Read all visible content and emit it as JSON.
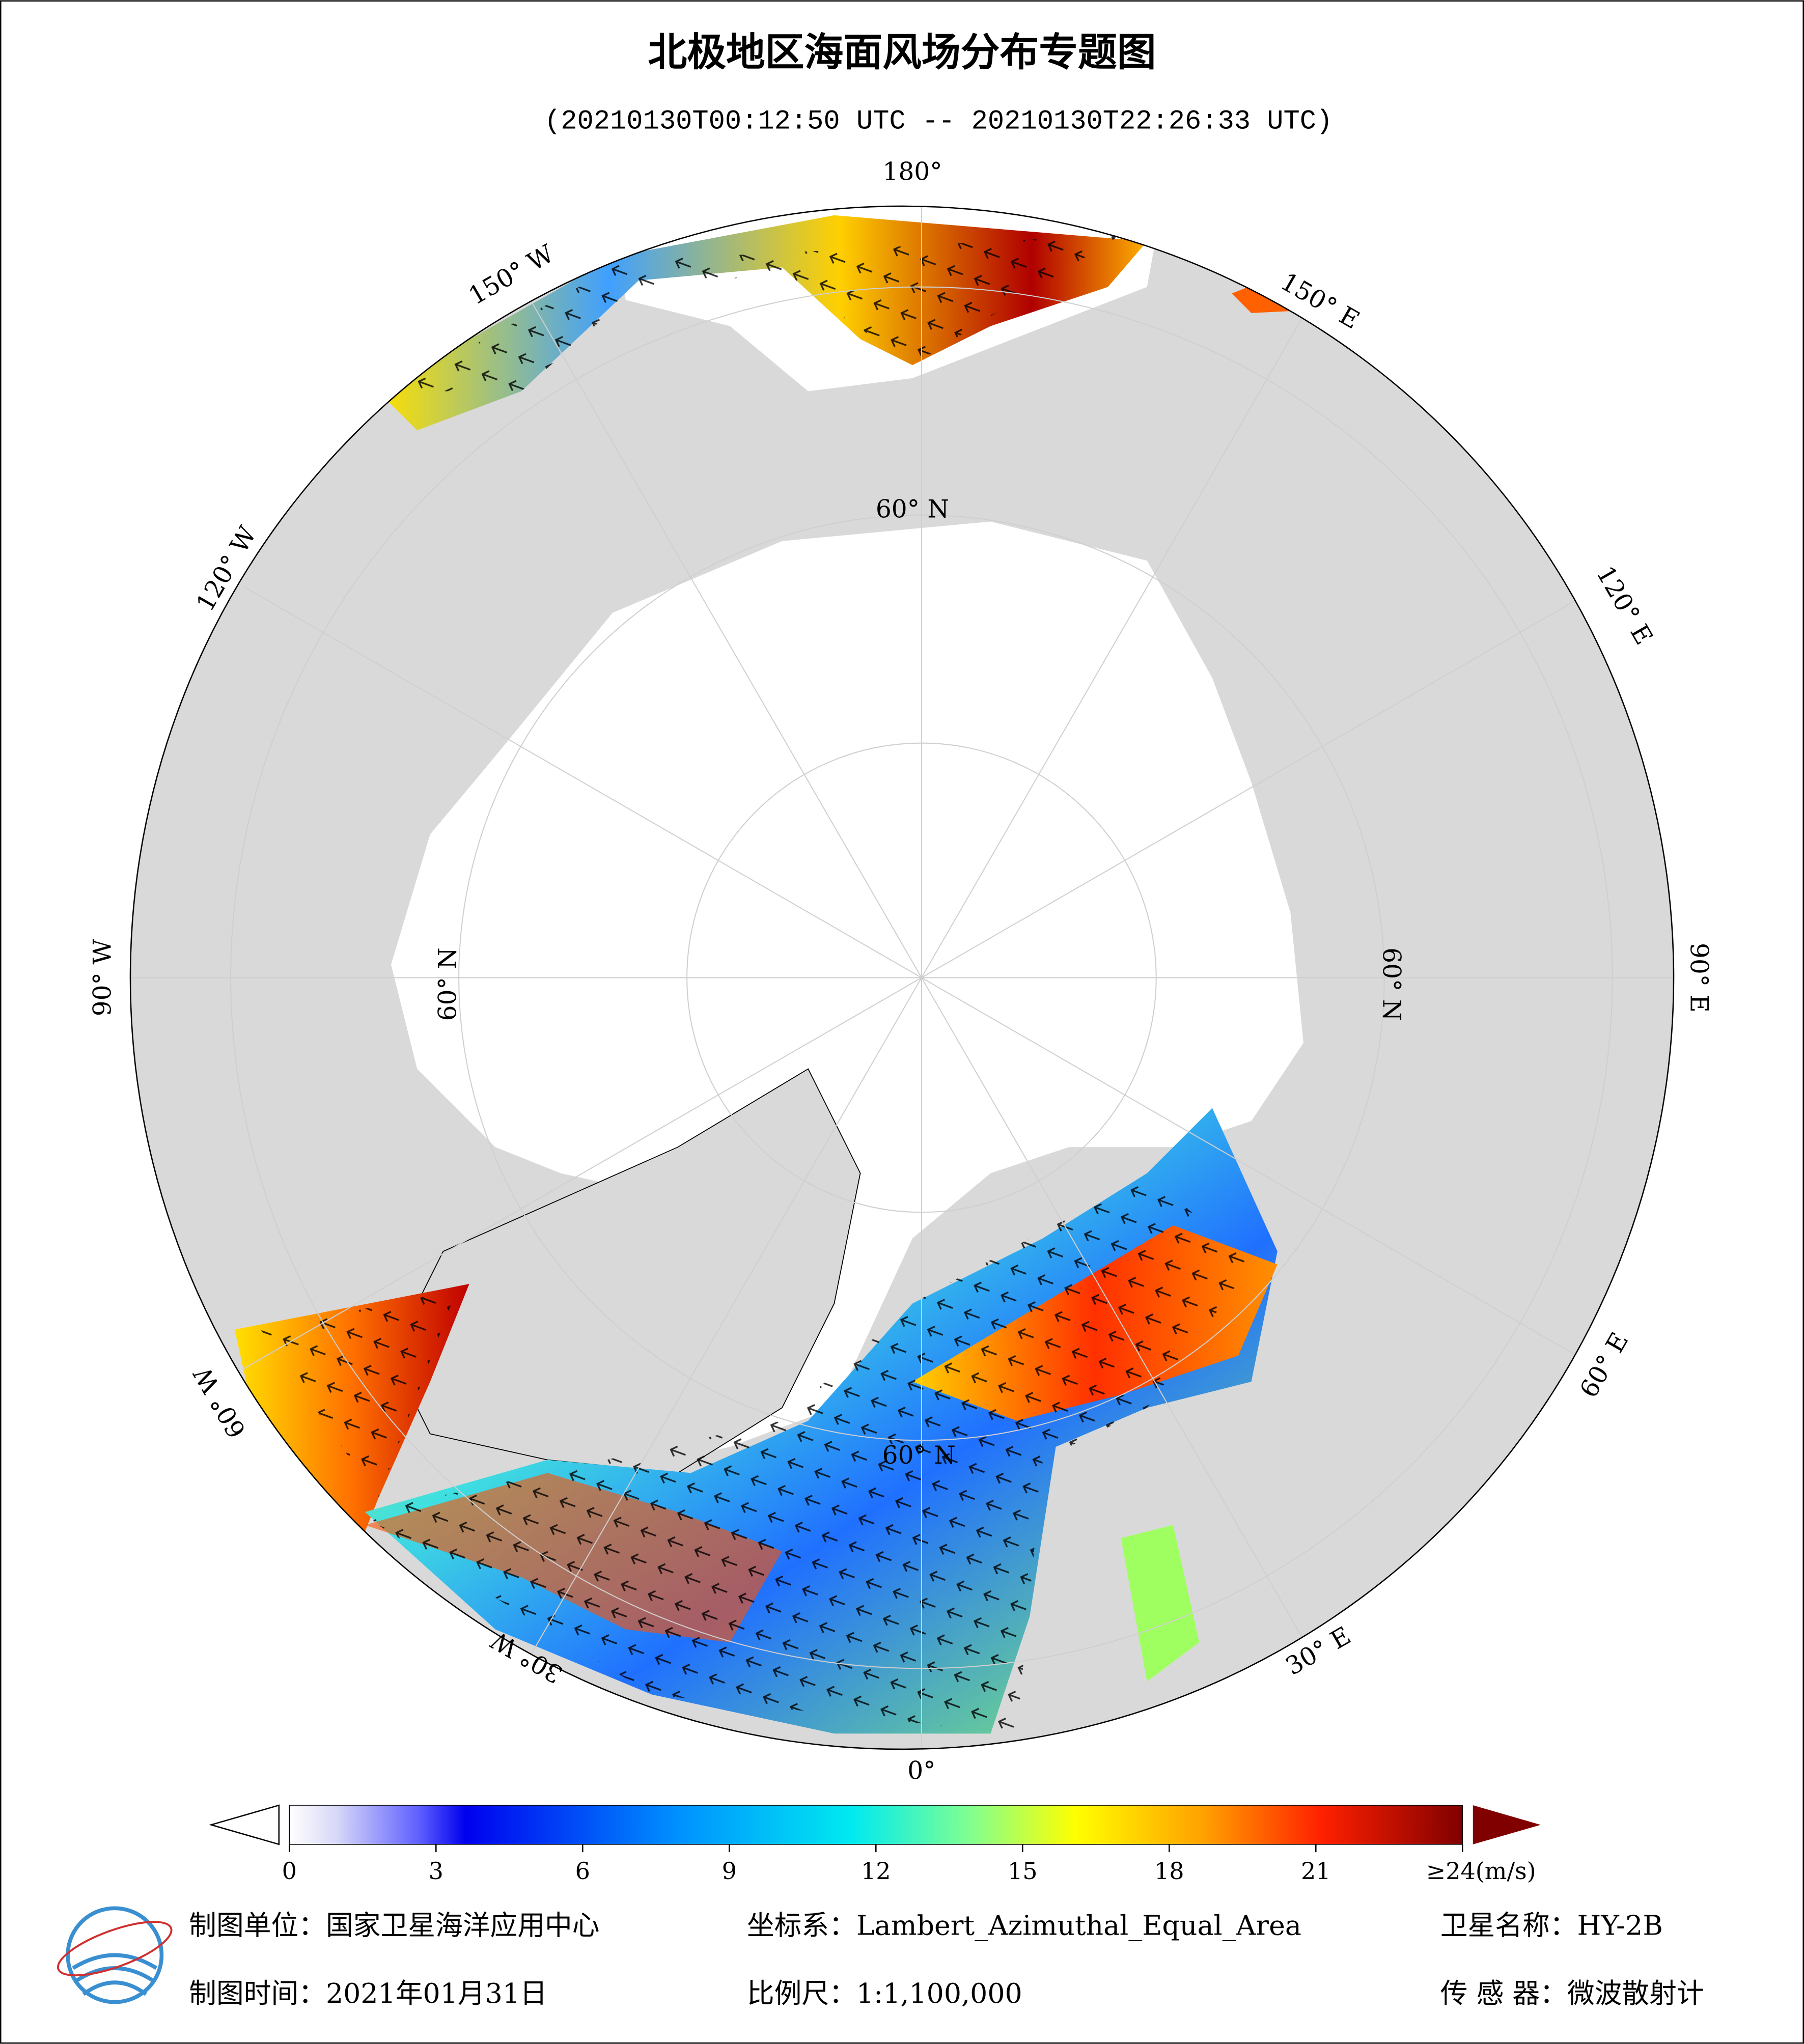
{
  "header": {
    "title": "北极地区海面风场分布专题图",
    "subtitle": "(20210130T00:12:50 UTC -- 20210130T22:26:33 UTC)"
  },
  "map": {
    "lon_labels": [
      "180°",
      "150° E",
      "120° E",
      "90° E",
      "60° E",
      "30° E",
      "0°",
      "30° W",
      "60° W",
      "90° W",
      "120° W",
      "150° W"
    ],
    "lat_labels": [
      "60° N",
      "60° N",
      "60° N",
      "60° N"
    ]
  },
  "legend": {
    "range": [
      0,
      24
    ],
    "ticks": [
      0,
      3,
      6,
      9,
      12,
      15,
      18,
      21,
      {
        "value": 24,
        "label": "≥24(m/s)"
      }
    ]
  },
  "footer": {
    "unit": "制图单位：国家卫星海洋应用中心",
    "crs": "坐标系：Lambert_Azimuthal_Equal_Area",
    "satellite": "卫星名称：HY-2B",
    "date": "制图时间：2021年01月31日",
    "scale": "比例尺：1:1,100,000",
    "sensor": "传 感 器：微波散射计"
  }
}
